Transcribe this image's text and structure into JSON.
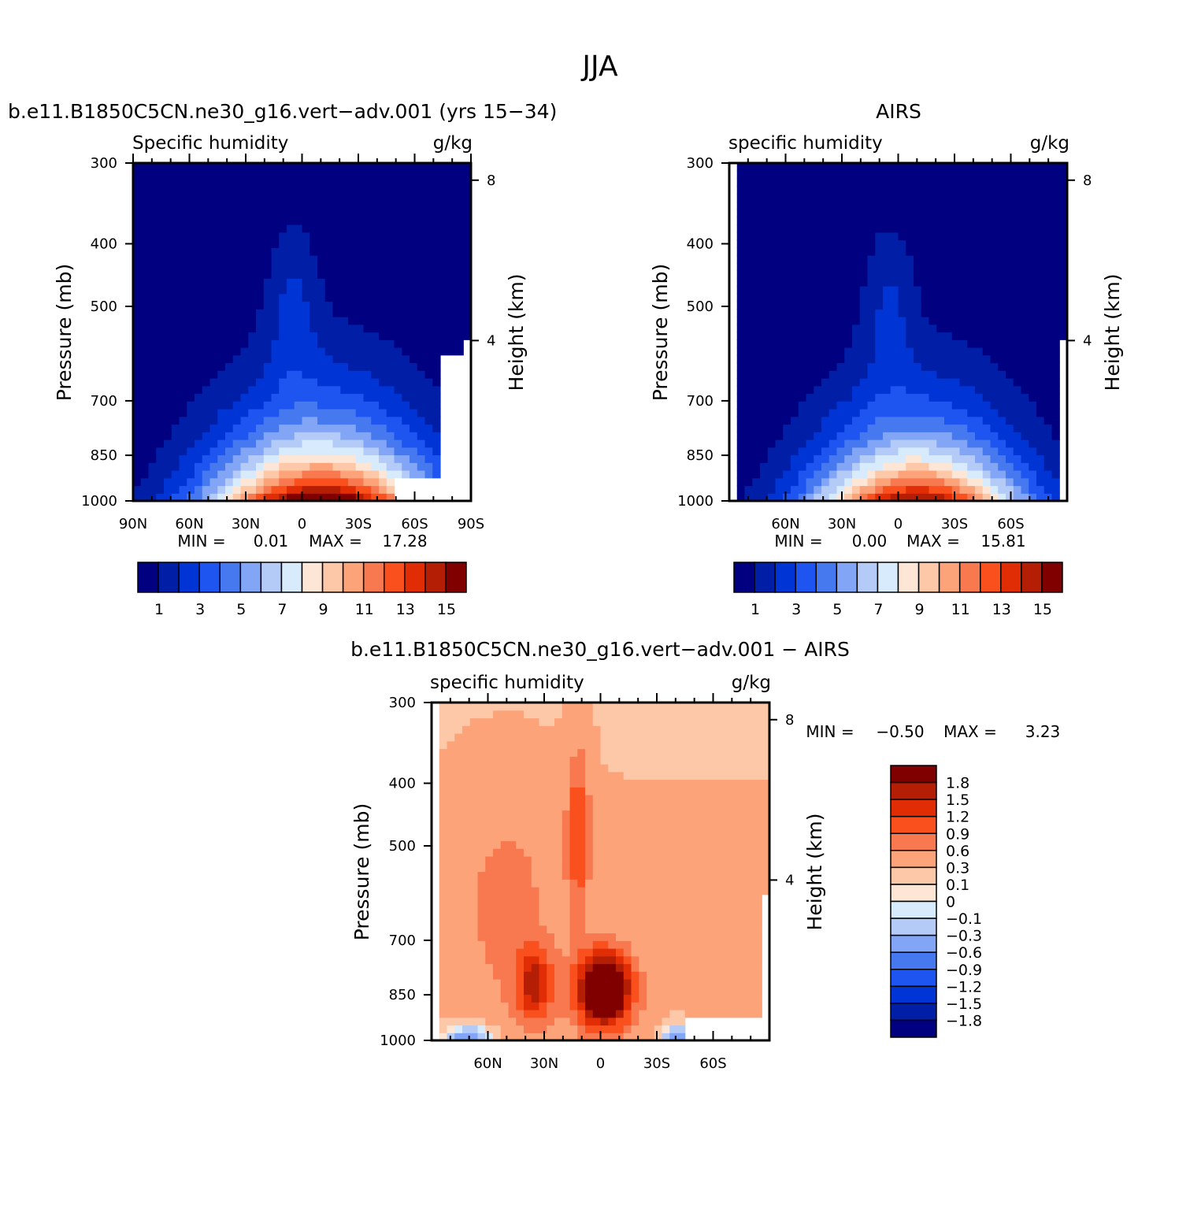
{
  "title": "JJA",
  "colors": {
    "abs": [
      "#000080",
      "#001ea6",
      "#0034d4",
      "#1e55f0",
      "#4678f0",
      "#82a5f5",
      "#b4caf7",
      "#d8ebfc",
      "#fde6d6",
      "#fcc8a8",
      "#fca37a",
      "#f87850",
      "#fa501e",
      "#e12d05",
      "#b41e05",
      "#800000"
    ],
    "diff": [
      "#000080",
      "#001ea6",
      "#0034d4",
      "#1e55f0",
      "#4678f0",
      "#82a5f5",
      "#b4caf7",
      "#d8ebfc",
      "#fde6d6",
      "#fcc8a8",
      "#fca37a",
      "#f87850",
      "#fa501e",
      "#e12d05",
      "#b41e05",
      "#800000"
    ]
  },
  "chart_data": [
    {
      "type": "contour",
      "title": "b.e11.B1850C5CN.ne30_g16.vert−adv.001 (yrs 15−34)",
      "left_string": "Specific humidity",
      "right_string": "g/kg",
      "xlabel": "",
      "ylabel": "Pressure (mb)",
      "ylabel_right": "Height (km)",
      "x_ticks": [
        "90N",
        "60N",
        "30N",
        "0",
        "30S",
        "60S",
        "90S"
      ],
      "y_ticks": [
        "300",
        "400",
        "500",
        "700",
        "850",
        "1000"
      ],
      "height_ticks": [
        "8",
        "4"
      ],
      "xlim": [
        90,
        -90
      ],
      "ylim": [
        1000,
        300
      ],
      "min_label": "MIN =",
      "min_value": "0.01",
      "max_label": "MAX =",
      "max_value": "17.28",
      "colorbar_labels": [
        "1",
        "3",
        "5",
        "7",
        "9",
        "11",
        "13",
        "15"
      ],
      "field": {
        "peak_lat": -10,
        "peak_value": 17.28,
        "width": 60,
        "scale_height": 1.6
      }
    },
    {
      "type": "contour",
      "title": "AIRS",
      "left_string": "specific humidity",
      "right_string": "g/kg",
      "xlabel": "",
      "ylabel": "Pressure (mb)",
      "ylabel_right": "Height (km)",
      "x_ticks": [
        "60N",
        "30N",
        "0",
        "30S",
        "60S"
      ],
      "y_ticks": [
        "300",
        "400",
        "500",
        "700",
        "850",
        "1000"
      ],
      "height_ticks": [
        "8",
        "4"
      ],
      "xlim": [
        90,
        -90
      ],
      "ylim": [
        1000,
        300
      ],
      "min_label": "MIN =",
      "min_value": "0.00",
      "max_label": "MAX =",
      "max_value": "15.81",
      "colorbar_labels": [
        "1",
        "3",
        "5",
        "7",
        "9",
        "11",
        "13",
        "15"
      ],
      "field": {
        "peak_lat": -10,
        "peak_value": 15.81,
        "width": 56,
        "scale_height": 1.55
      }
    },
    {
      "type": "contour",
      "title": "b.e11.B1850C5CN.ne30_g16.vert−adv.001 − AIRS",
      "left_string": "specific humidity",
      "right_string": "g/kg",
      "xlabel": "",
      "ylabel": "Pressure (mb)",
      "ylabel_right": "Height (km)",
      "x_ticks": [
        "60N",
        "30N",
        "0",
        "30S",
        "60S"
      ],
      "y_ticks": [
        "300",
        "400",
        "500",
        "700",
        "850",
        "1000"
      ],
      "height_ticks": [
        "8",
        "4"
      ],
      "xlim": [
        90,
        -90
      ],
      "ylim": [
        1000,
        300
      ],
      "min_label": "MIN =",
      "min_value": "−0.50",
      "max_label": "MAX =",
      "max_value": "3.23",
      "colorbar_labels": [
        "1.8",
        "1.5",
        "1.2",
        "0.9",
        "0.6",
        "0.3",
        "0.1",
        "0",
        "−0.1",
        "−0.3",
        "−0.6",
        "−0.9",
        "−1.2",
        "−1.5",
        "−1.8"
      ]
    }
  ]
}
